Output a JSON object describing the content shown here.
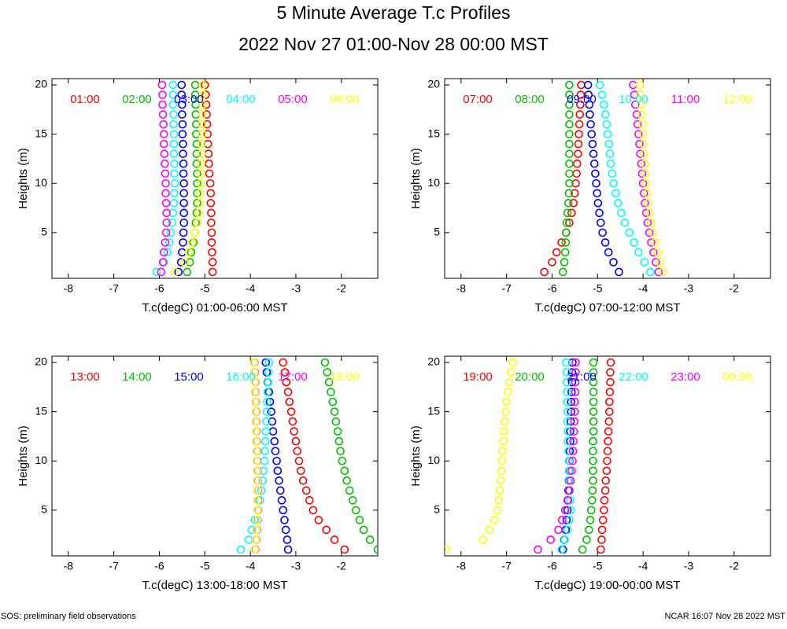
{
  "title": "5 Minute Average T.c Profiles",
  "subtitle": "2022 Nov 27 01:00-Nov 28 00:00 MST",
  "footer_left": "SOS: preliminary field observations",
  "footer_right": "NCAR 16:07 Nov 28 2022 MST",
  "chart_data": [
    {
      "type": "scatter",
      "xlabel": "T.c(degC) 01:00-06:00 MST",
      "ylabel": "Heights (m)",
      "xlim": [
        -8.36,
        -1.2
      ],
      "ylim": [
        0.36,
        20.64
      ],
      "xticks": [
        -8,
        -7,
        -6,
        -5,
        -4,
        -3,
        -2
      ],
      "yticks": [
        5,
        10,
        15,
        20
      ],
      "y": [
        1,
        2,
        3,
        4,
        5,
        6,
        7,
        8,
        9,
        10,
        11,
        12,
        13,
        14,
        15,
        16,
        17,
        18,
        19,
        20
      ],
      "series": [
        {
          "name": "01:00",
          "color": "#ff0000",
          "x": [
            -4.83,
            -4.83,
            -4.84,
            -4.85,
            -4.85,
            -4.86,
            -4.86,
            -4.87,
            -4.87,
            -4.88,
            -4.9,
            -4.91,
            -4.92,
            -4.93,
            -4.94,
            -4.95,
            -4.96,
            -4.97,
            -4.98,
            -5.0
          ]
        },
        {
          "name": "02:00",
          "color": "#00c000",
          "x": [
            -5.39,
            -5.33,
            -5.3,
            -5.25,
            -5.22,
            -5.2,
            -5.18,
            -5.17,
            -5.17,
            -5.17,
            -5.17,
            -5.18,
            -5.18,
            -5.18,
            -5.19,
            -5.19,
            -5.2,
            -5.2,
            -5.21,
            -5.21
          ]
        },
        {
          "name": "03:00",
          "color": "#0000ff",
          "x": [
            -5.58,
            -5.52,
            -5.5,
            -5.48,
            -5.47,
            -5.46,
            -5.46,
            -5.46,
            -5.46,
            -5.46,
            -5.47,
            -5.47,
            -5.48,
            -5.48,
            -5.49,
            -5.49,
            -5.5,
            -5.5,
            -5.51,
            -5.51
          ]
        },
        {
          "name": "04:00",
          "color": "#00ffff",
          "x": [
            -6.06,
            -5.9,
            -5.82,
            -5.78,
            -5.75,
            -5.72,
            -5.7,
            -5.68,
            -5.67,
            -5.66,
            -5.67,
            -5.67,
            -5.68,
            -5.68,
            -5.68,
            -5.69,
            -5.69,
            -5.7,
            -5.7,
            -5.7
          ]
        },
        {
          "name": "05:00",
          "color": "#ff00ff",
          "x": [
            -5.96,
            -5.92,
            -5.9,
            -5.87,
            -5.85,
            -5.84,
            -5.84,
            -5.85,
            -5.86,
            -5.86,
            -5.87,
            -5.88,
            -5.89,
            -5.9,
            -5.9,
            -5.91,
            -5.92,
            -5.93,
            -5.93,
            -5.94
          ]
        },
        {
          "name": "06:00",
          "color": "#ffff00",
          "x": [
            -5.66,
            -5.45,
            -5.35,
            -5.28,
            -5.22,
            -5.17,
            -5.14,
            -5.11,
            -5.1,
            -5.09,
            -5.08,
            -5.08,
            -5.07,
            -5.07,
            -5.06,
            -5.06,
            -5.05,
            -5.05,
            -5.04,
            -5.04
          ]
        }
      ]
    },
    {
      "type": "scatter",
      "xlabel": "T.c(degC) 07:00-12:00 MST",
      "ylabel": "Heights (m)",
      "xlim": [
        -8.36,
        -1.2
      ],
      "ylim": [
        0.36,
        20.64
      ],
      "xticks": [
        -8,
        -7,
        -6,
        -5,
        -4,
        -3,
        -2
      ],
      "yticks": [
        5,
        10,
        15,
        20
      ],
      "y": [
        1,
        2,
        3,
        4,
        5,
        6,
        7,
        8,
        9,
        10,
        11,
        12,
        13,
        14,
        15,
        16,
        17,
        18,
        19,
        20
      ],
      "series": [
        {
          "name": "07:00",
          "color": "#ff0000",
          "x": [
            -6.17,
            -6.0,
            -5.9,
            -5.79,
            -5.69,
            -5.62,
            -5.57,
            -5.53,
            -5.5,
            -5.48,
            -5.46,
            -5.45,
            -5.43,
            -5.42,
            -5.41,
            -5.4,
            -5.39,
            -5.38,
            -5.37,
            -5.36
          ]
        },
        {
          "name": "08:00",
          "color": "#00c000",
          "x": [
            -5.76,
            -5.73,
            -5.71,
            -5.7,
            -5.69,
            -5.68,
            -5.66,
            -5.64,
            -5.63,
            -5.62,
            -5.62,
            -5.62,
            -5.62,
            -5.62,
            -5.62,
            -5.62,
            -5.62,
            -5.62,
            -5.62,
            -5.62
          ]
        },
        {
          "name": "09:00",
          "color": "#0000ff",
          "x": [
            -4.53,
            -4.65,
            -4.76,
            -4.83,
            -4.89,
            -4.93,
            -4.96,
            -4.99,
            -5.01,
            -5.03,
            -5.05,
            -5.07,
            -5.09,
            -5.11,
            -5.13,
            -5.15,
            -5.17,
            -5.18,
            -5.2,
            -5.21
          ]
        },
        {
          "name": "10:00",
          "color": "#00ffff",
          "x": [
            -3.84,
            -3.97,
            -4.1,
            -4.2,
            -4.3,
            -4.4,
            -4.48,
            -4.55,
            -4.6,
            -4.65,
            -4.68,
            -4.71,
            -4.73,
            -4.75,
            -4.78,
            -4.8,
            -4.83,
            -4.86,
            -4.9,
            -4.95
          ]
        },
        {
          "name": "11:00",
          "color": "#ff00ff",
          "x": [
            -3.66,
            -3.72,
            -3.77,
            -3.82,
            -3.86,
            -3.9,
            -3.93,
            -3.96,
            -3.98,
            -4.0,
            -4.02,
            -4.04,
            -4.06,
            -4.08,
            -4.1,
            -4.12,
            -4.14,
            -4.17,
            -4.19,
            -4.22
          ]
        },
        {
          "name": "12:00",
          "color": "#ffff00",
          "x": [
            -3.57,
            -3.63,
            -3.68,
            -3.74,
            -3.79,
            -3.83,
            -3.86,
            -3.89,
            -3.91,
            -3.93,
            -3.95,
            -3.96,
            -3.98,
            -3.99,
            -4.0,
            -4.02,
            -4.03,
            -4.05,
            -4.06,
            -4.07
          ]
        }
      ]
    },
    {
      "type": "scatter",
      "xlabel": "T.c(degC) 13:00-18:00 MST",
      "ylabel": "Heights (m)",
      "xlim": [
        -8.36,
        -1.2
      ],
      "ylim": [
        0.36,
        20.64
      ],
      "xticks": [
        -8,
        -7,
        -6,
        -5,
        -4,
        -3,
        -2
      ],
      "yticks": [
        5,
        10,
        15,
        20
      ],
      "y": [
        1,
        2,
        3,
        4,
        5,
        6,
        7,
        8,
        9,
        10,
        11,
        12,
        13,
        14,
        15,
        16,
        17,
        18,
        19,
        20
      ],
      "series": [
        {
          "name": "13:00",
          "color": "#ff0000",
          "x": [
            -1.93,
            -2.15,
            -2.33,
            -2.5,
            -2.62,
            -2.7,
            -2.77,
            -2.84,
            -2.89,
            -2.93,
            -2.97,
            -3.0,
            -3.04,
            -3.07,
            -3.1,
            -3.14,
            -3.17,
            -3.21,
            -3.24,
            -3.28
          ]
        },
        {
          "name": "14:00",
          "color": "#00c000",
          "x": [
            -1.2,
            -1.37,
            -1.51,
            -1.6,
            -1.68,
            -1.75,
            -1.82,
            -1.88,
            -1.93,
            -1.98,
            -2.02,
            -2.05,
            -2.08,
            -2.12,
            -2.15,
            -2.19,
            -2.23,
            -2.27,
            -2.31,
            -2.36
          ]
        },
        {
          "name": "15:00",
          "color": "#0000ff",
          "x": [
            -3.17,
            -3.19,
            -3.22,
            -3.25,
            -3.28,
            -3.31,
            -3.34,
            -3.37,
            -3.4,
            -3.42,
            -3.45,
            -3.47,
            -3.5,
            -3.52,
            -3.54,
            -3.57,
            -3.59,
            -3.62,
            -3.64,
            -3.66
          ]
        },
        {
          "name": "16:00",
          "color": "#00ffff",
          "x": [
            -4.21,
            -4.04,
            -3.97,
            -3.9,
            -3.84,
            -3.79,
            -3.76,
            -3.73,
            -3.71,
            -3.69,
            -3.68,
            -3.67,
            -3.66,
            -3.65,
            -3.64,
            -3.63,
            -3.62,
            -3.61,
            -3.6,
            -3.59
          ]
        },
        {
          "name": "17:00",
          "color": "#ff00ff",
          "x": [
            -3.89,
            -3.87,
            -3.85,
            -3.84,
            -3.83,
            -3.83,
            -3.83,
            -3.84,
            -3.84,
            -3.85,
            -3.85,
            -3.86,
            -3.86,
            -3.87,
            -3.87,
            -3.88,
            -3.89,
            -3.89,
            -3.9,
            -3.91
          ]
        },
        {
          "name": "18:00",
          "color": "#ffff00",
          "x": [
            -3.9,
            -3.88,
            -3.86,
            -3.85,
            -3.84,
            -3.84,
            -3.84,
            -3.85,
            -3.85,
            -3.86,
            -3.86,
            -3.87,
            -3.87,
            -3.88,
            -3.88,
            -3.89,
            -3.9,
            -3.9,
            -3.91,
            -3.92
          ]
        }
      ]
    },
    {
      "type": "scatter",
      "xlabel": "T.c(degC) 19:00-00:00 MST",
      "ylabel": "Heights (m)",
      "xlim": [
        -8.36,
        -1.2
      ],
      "ylim": [
        0.36,
        20.64
      ],
      "xticks": [
        -8,
        -7,
        -6,
        -5,
        -4,
        -3,
        -2
      ],
      "yticks": [
        5,
        10,
        15,
        20
      ],
      "y": [
        1,
        2,
        3,
        4,
        5,
        6,
        7,
        8,
        9,
        10,
        11,
        12,
        13,
        14,
        15,
        16,
        17,
        18,
        19,
        20
      ],
      "series": [
        {
          "name": "19:00",
          "color": "#ff0000",
          "x": [
            -4.93,
            -4.91,
            -4.9,
            -4.88,
            -4.86,
            -4.85,
            -4.83,
            -4.82,
            -4.8,
            -4.79,
            -4.78,
            -4.77,
            -4.76,
            -4.75,
            -4.74,
            -4.74,
            -4.73,
            -4.72,
            -4.72,
            -4.71
          ]
        },
        {
          "name": "20:00",
          "color": "#00c000",
          "x": [
            -5.33,
            -5.24,
            -5.19,
            -5.16,
            -5.14,
            -5.12,
            -5.11,
            -5.1,
            -5.1,
            -5.1,
            -5.1,
            -5.1,
            -5.09,
            -5.09,
            -5.09,
            -5.09,
            -5.09,
            -5.09,
            -5.09,
            -5.09
          ]
        },
        {
          "name": "21:00",
          "color": "#0000ff",
          "x": [
            -5.76,
            -5.73,
            -5.7,
            -5.68,
            -5.66,
            -5.65,
            -5.64,
            -5.63,
            -5.62,
            -5.62,
            -5.61,
            -5.6,
            -5.6,
            -5.59,
            -5.58,
            -5.58,
            -5.57,
            -5.56,
            -5.56,
            -5.55
          ]
        },
        {
          "name": "22:00",
          "color": "#00ffff",
          "x": [
            -5.79,
            -5.72,
            -5.66,
            -5.62,
            -5.59,
            -5.6,
            -5.61,
            -5.62,
            -5.63,
            -5.63,
            -5.64,
            -5.65,
            -5.65,
            -5.66,
            -5.66,
            -5.67,
            -5.67,
            -5.68,
            -5.68,
            -5.69
          ]
        },
        {
          "name": "23:00",
          "color": "#ff00ff",
          "x": [
            -6.31,
            -6.03,
            -5.86,
            -5.78,
            -5.71,
            -5.66,
            -5.62,
            -5.59,
            -5.57,
            -5.55,
            -5.54,
            -5.53,
            -5.52,
            -5.51,
            -5.5,
            -5.5,
            -5.49,
            -5.49,
            -5.48,
            -5.48
          ]
        },
        {
          "name": "00:00",
          "color": "#ffff00",
          "x": [
            -8.33,
            -7.52,
            -7.38,
            -7.27,
            -7.2,
            -7.17,
            -7.15,
            -7.13,
            -7.11,
            -7.1,
            -7.09,
            -7.07,
            -7.06,
            -7.04,
            -7.02,
            -7.0,
            -6.97,
            -6.94,
            -6.9,
            -6.86
          ]
        }
      ]
    }
  ]
}
